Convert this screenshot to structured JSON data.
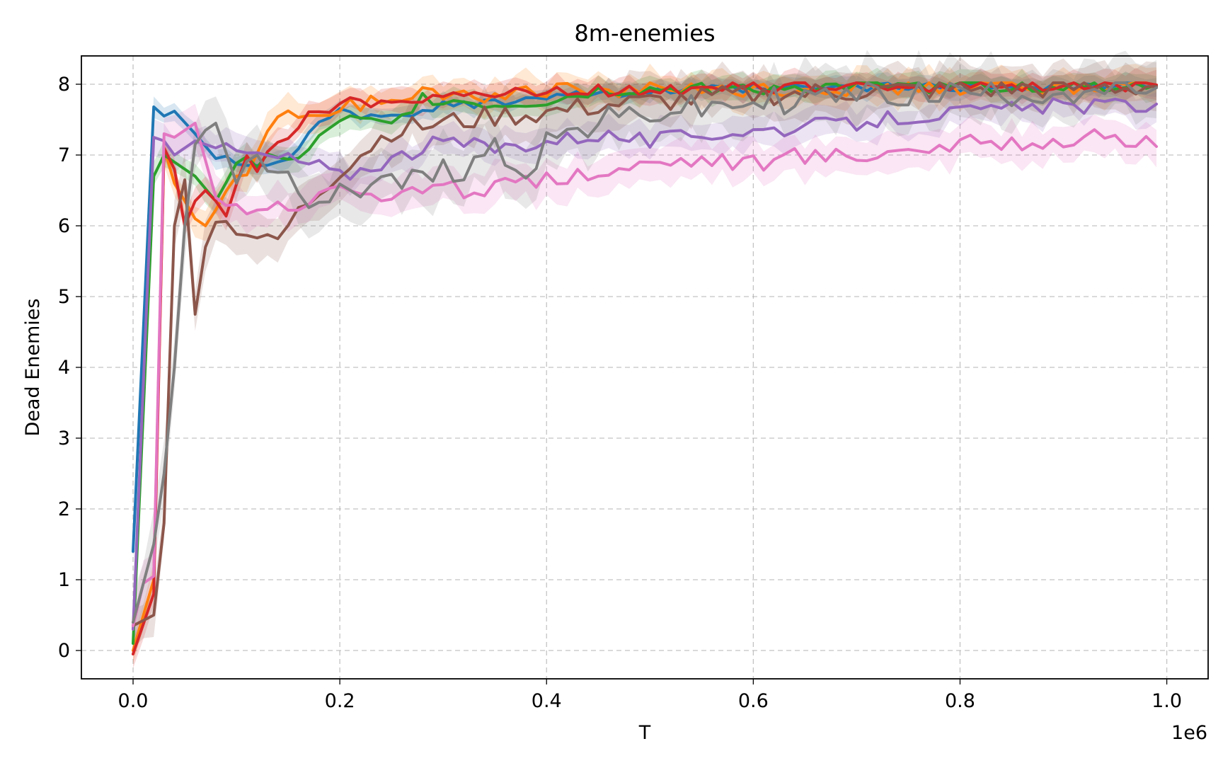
{
  "chart_data": {
    "type": "line",
    "title": "8m-enemies",
    "xlabel": "T",
    "ylabel": "Dead Enemies",
    "x_offset_label": "1e6",
    "xlim": [
      -0.05,
      1.04
    ],
    "ylim": [
      -0.4,
      8.4
    ],
    "x_ticks": [
      0.0,
      0.2,
      0.4,
      0.6,
      0.8,
      1.0
    ],
    "x_tick_labels": [
      "0.0",
      "0.2",
      "0.4",
      "0.6",
      "0.8",
      "1.0"
    ],
    "y_ticks": [
      0,
      1,
      2,
      3,
      4,
      5,
      6,
      7,
      8
    ],
    "y_tick_labels": [
      "0",
      "1",
      "2",
      "3",
      "4",
      "5",
      "6",
      "7",
      "8"
    ],
    "grid": true,
    "legend": false,
    "series": [
      {
        "color": "#1f77b4",
        "x": [
          0.0,
          0.02,
          0.03,
          0.04,
          0.06,
          0.08,
          0.1,
          0.12,
          0.15,
          0.18,
          0.2,
          0.25,
          0.3,
          0.35,
          0.4,
          0.5,
          0.6,
          0.7,
          0.8,
          0.9,
          0.99
        ],
        "y": [
          1.4,
          7.68,
          7.55,
          7.62,
          7.3,
          6.95,
          6.9,
          6.85,
          7.0,
          7.4,
          7.6,
          7.5,
          7.7,
          7.75,
          7.85,
          7.9,
          7.92,
          7.95,
          7.96,
          7.97,
          7.98
        ],
        "band": 0.15
      },
      {
        "color": "#ff7f0e",
        "x": [
          0.0,
          0.02,
          0.03,
          0.04,
          0.06,
          0.07,
          0.09,
          0.11,
          0.14,
          0.17,
          0.2,
          0.25,
          0.28,
          0.35,
          0.4,
          0.5,
          0.6,
          0.7,
          0.8,
          0.9,
          0.99
        ],
        "y": [
          0.0,
          1.0,
          7.1,
          6.6,
          6.1,
          6.0,
          6.45,
          6.8,
          7.6,
          7.5,
          7.7,
          7.8,
          7.9,
          7.85,
          7.9,
          7.92,
          7.94,
          7.95,
          7.96,
          7.97,
          7.98
        ],
        "band": 0.25
      },
      {
        "color": "#2ca02c",
        "x": [
          0.0,
          0.02,
          0.03,
          0.04,
          0.06,
          0.08,
          0.1,
          0.12,
          0.14,
          0.16,
          0.2,
          0.25,
          0.28,
          0.35,
          0.4,
          0.45,
          0.5,
          0.6,
          0.7,
          0.8,
          0.9,
          0.99
        ],
        "y": [
          0.1,
          6.7,
          7.0,
          6.9,
          6.7,
          6.35,
          6.9,
          6.9,
          7.0,
          6.9,
          7.5,
          7.4,
          7.8,
          7.7,
          7.75,
          7.9,
          7.92,
          7.95,
          7.96,
          7.97,
          7.98,
          7.99
        ],
        "band": 0.2
      },
      {
        "color": "#d62728",
        "x": [
          0.0,
          0.02,
          0.03,
          0.04,
          0.05,
          0.06,
          0.07,
          0.08,
          0.09,
          0.1,
          0.11,
          0.12,
          0.13,
          0.14,
          0.15,
          0.17,
          0.2,
          0.25,
          0.3,
          0.35,
          0.4,
          0.5,
          0.6,
          0.7,
          0.8,
          0.9,
          0.99
        ],
        "y": [
          -0.05,
          0.8,
          7.1,
          6.8,
          6.0,
          6.35,
          6.5,
          6.35,
          6.2,
          6.5,
          6.95,
          6.7,
          7.1,
          7.2,
          7.3,
          7.6,
          7.7,
          7.8,
          7.85,
          7.85,
          7.9,
          7.93,
          7.95,
          7.97,
          7.98,
          7.99,
          7.99
        ],
        "band": 0.2
      },
      {
        "color": "#9467bd",
        "x": [
          0.0,
          0.02,
          0.03,
          0.04,
          0.06,
          0.08,
          0.1,
          0.12,
          0.15,
          0.18,
          0.2,
          0.25,
          0.3,
          0.35,
          0.4,
          0.45,
          0.5,
          0.55,
          0.6,
          0.65,
          0.7,
          0.75,
          0.8,
          0.85,
          0.9,
          0.95,
          0.99
        ],
        "y": [
          0.3,
          7.25,
          7.2,
          7.0,
          7.2,
          7.1,
          7.05,
          7.0,
          6.95,
          6.85,
          6.7,
          6.95,
          7.2,
          7.1,
          7.2,
          7.3,
          7.2,
          7.3,
          7.35,
          7.4,
          7.45,
          7.55,
          7.6,
          7.65,
          7.7,
          7.7,
          7.72
        ],
        "band": 0.25
      },
      {
        "color": "#8c564b",
        "x": [
          0.0,
          0.02,
          0.03,
          0.04,
          0.05,
          0.06,
          0.07,
          0.08,
          0.1,
          0.12,
          0.13,
          0.14,
          0.15,
          0.17,
          0.2,
          0.25,
          0.3,
          0.35,
          0.4,
          0.45,
          0.5,
          0.6,
          0.7,
          0.8,
          0.9,
          0.99
        ],
        "y": [
          0.35,
          0.5,
          1.8,
          6.0,
          6.65,
          4.75,
          5.7,
          6.05,
          6.0,
          5.85,
          5.75,
          5.8,
          6.0,
          6.35,
          6.8,
          7.35,
          7.45,
          7.55,
          7.6,
          7.7,
          7.75,
          7.85,
          7.9,
          7.93,
          7.95,
          7.97
        ],
        "band": 0.35
      },
      {
        "color": "#e377c2",
        "x": [
          0.0,
          0.01,
          0.02,
          0.03,
          0.04,
          0.06,
          0.08,
          0.1,
          0.12,
          0.15,
          0.18,
          0.2,
          0.25,
          0.3,
          0.35,
          0.4,
          0.45,
          0.5,
          0.55,
          0.6,
          0.65,
          0.7,
          0.75,
          0.8,
          0.85,
          0.9,
          0.95,
          0.99
        ],
        "y": [
          0.35,
          0.95,
          1.05,
          7.3,
          7.25,
          7.45,
          6.4,
          6.25,
          6.3,
          6.3,
          6.4,
          6.6,
          6.4,
          6.5,
          6.5,
          6.7,
          6.75,
          6.9,
          6.95,
          6.9,
          7.0,
          7.0,
          7.1,
          7.15,
          7.2,
          7.2,
          7.25,
          7.12
        ],
        "band": 0.3
      },
      {
        "color": "#7f7f7f",
        "x": [
          0.0,
          0.02,
          0.03,
          0.04,
          0.05,
          0.06,
          0.07,
          0.08,
          0.09,
          0.1,
          0.12,
          0.15,
          0.17,
          0.2,
          0.25,
          0.3,
          0.32,
          0.35,
          0.38,
          0.4,
          0.45,
          0.5,
          0.55,
          0.6,
          0.65,
          0.7,
          0.8,
          0.9,
          0.99
        ],
        "y": [
          0.4,
          1.5,
          2.5,
          4.0,
          6.0,
          7.15,
          7.35,
          7.45,
          7.2,
          6.7,
          6.8,
          6.6,
          6.4,
          6.55,
          6.6,
          6.75,
          6.85,
          7.1,
          6.8,
          7.2,
          7.45,
          7.6,
          7.65,
          7.75,
          7.8,
          7.85,
          7.88,
          7.9,
          7.95
        ],
        "band": 0.45
      }
    ]
  }
}
